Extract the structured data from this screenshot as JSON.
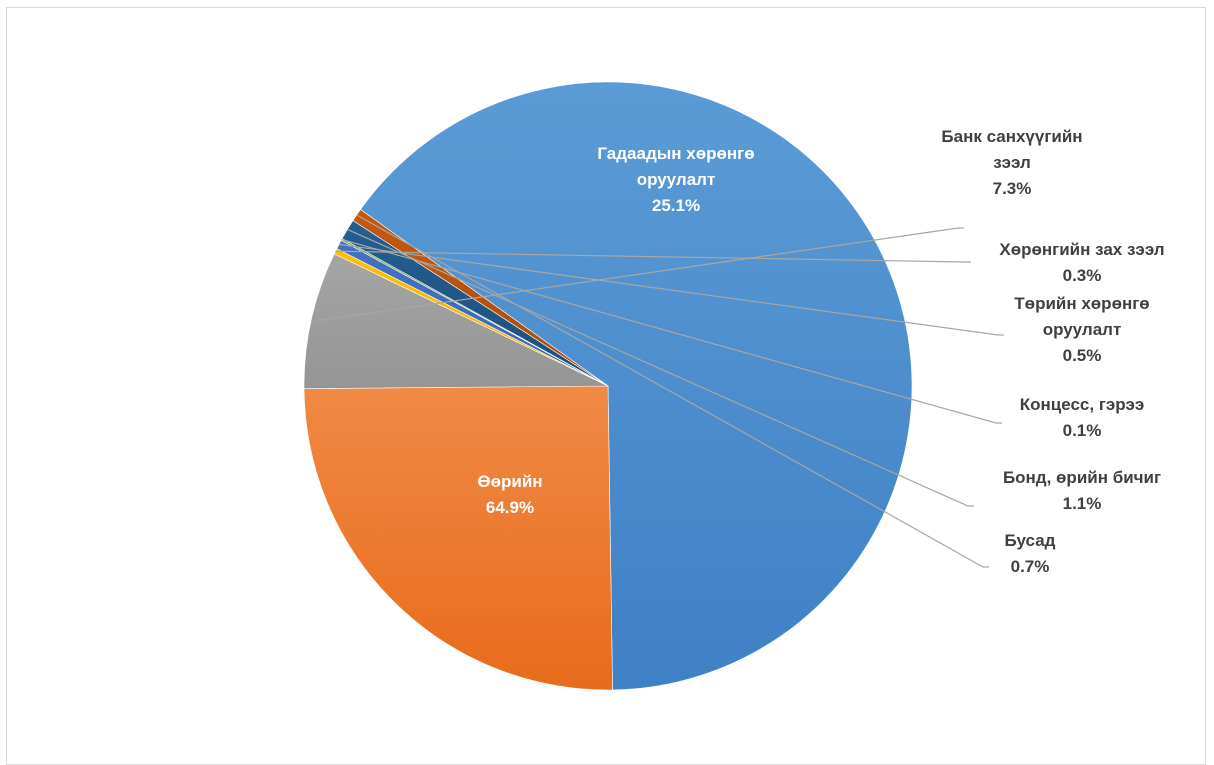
{
  "chart_data": {
    "type": "pie",
    "title": "",
    "slices": [
      {
        "label": [
          "Өөрийн"
        ],
        "value": 64.9,
        "value_text": "64.9%",
        "color": "#5b9bd5",
        "color_dark": "#3f80c6"
      },
      {
        "label": [
          "Гадаадын хөрөнгө",
          "оруулалт"
        ],
        "value": 25.1,
        "value_text": "25.1%",
        "color": "#f08a45",
        "color_dark": "#e86b1c"
      },
      {
        "label": [
          "Банк санхүүгийн",
          "зээл"
        ],
        "value": 7.3,
        "value_text": "7.3%",
        "color": "#a5a5a5",
        "color_dark": "#959595"
      },
      {
        "label": [
          "Хөрөнгийн зах зээл"
        ],
        "value": 0.3,
        "value_text": "0.3%",
        "color": "#ffc000",
        "color_dark": "#f0b400"
      },
      {
        "label": [
          "Төрийн хөрөнгө",
          "оруулалт"
        ],
        "value": 0.5,
        "value_text": "0.5%",
        "color": "#4472c4",
        "color_dark": "#3b66b3"
      },
      {
        "label": [
          "Концесс, гэрээ"
        ],
        "value": 0.1,
        "value_text": "0.1%",
        "color": "#70ad47",
        "color_dark": "#5f9a3a"
      },
      {
        "label": [
          "Бонд, өрийн бичиг"
        ],
        "value": 1.1,
        "value_text": "1.1%",
        "color": "#255e91",
        "color_dark": "#1d4f7c"
      },
      {
        "label": [
          "Бусад"
        ],
        "value": 0.7,
        "value_text": "0.7%",
        "color": "#c55a11",
        "color_dark": "#a94b0c"
      }
    ],
    "legend": "none"
  }
}
